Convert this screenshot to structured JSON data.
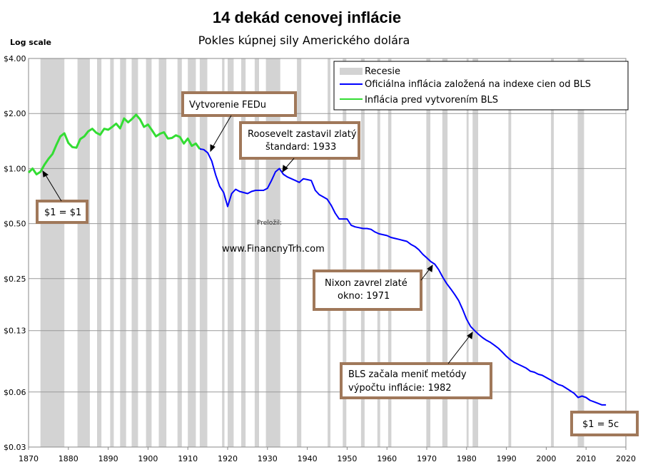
{
  "chart_data": {
    "type": "line",
    "title": "14 dekád cenovej inflácie",
    "subtitle": "Pokles kúpnej sily Amerického dolára",
    "y_scale_label": "Log scale",
    "log_scale": true,
    "grid": true,
    "xlim": [
      1870,
      2020
    ],
    "ylim": [
      0.03,
      4.0
    ],
    "x_ticks": [
      1870,
      1880,
      1890,
      1900,
      1910,
      1920,
      1930,
      1940,
      1950,
      1960,
      1970,
      1980,
      1990,
      2000,
      2010,
      2020
    ],
    "y_ticks": [
      {
        "value": 4.0,
        "label": "$4.00"
      },
      {
        "value": 2.0,
        "label": "$2.00"
      },
      {
        "value": 1.0,
        "label": "$1.00"
      },
      {
        "value": 0.5,
        "label": "$0.50"
      },
      {
        "value": 0.25,
        "label": "$0.25"
      },
      {
        "value": 0.13,
        "label": "$0.13"
      },
      {
        "value": 0.06,
        "label": "$0.06"
      },
      {
        "value": 0.03,
        "label": "$0.03"
      }
    ],
    "legend": {
      "position": "top-right",
      "entries": [
        {
          "label": "Recesie",
          "color": "#d3d3d3",
          "kind": "band"
        },
        {
          "label": "Oficiálna inflácia založená na indexe cien od BLS",
          "color": "#0000ff",
          "kind": "line"
        },
        {
          "label": "Inflácia pred vytvorením BLS",
          "color": "#33dd33",
          "kind": "line"
        }
      ]
    },
    "recessions": [
      [
        1873.0,
        1879.0
      ],
      [
        1882.3,
        1885.4
      ],
      [
        1887.2,
        1888.3
      ],
      [
        1890.5,
        1891.4
      ],
      [
        1893.0,
        1894.5
      ],
      [
        1895.9,
        1897.5
      ],
      [
        1899.5,
        1900.9
      ],
      [
        1902.7,
        1904.6
      ],
      [
        1907.4,
        1908.5
      ],
      [
        1910.0,
        1912.0
      ],
      [
        1913.0,
        1914.9
      ],
      [
        1918.6,
        1919.2
      ],
      [
        1920.0,
        1921.5
      ],
      [
        1923.4,
        1924.5
      ],
      [
        1926.8,
        1927.9
      ],
      [
        1929.6,
        1933.2
      ],
      [
        1937.4,
        1938.5
      ],
      [
        1945.1,
        1945.8
      ],
      [
        1948.9,
        1949.8
      ],
      [
        1953.5,
        1954.4
      ],
      [
        1957.6,
        1958.3
      ],
      [
        1960.3,
        1961.1
      ],
      [
        1969.9,
        1970.9
      ],
      [
        1973.9,
        1975.2
      ],
      [
        1980.0,
        1980.5
      ],
      [
        1981.5,
        1982.9
      ],
      [
        1990.5,
        1991.2
      ],
      [
        2001.2,
        2001.9
      ],
      [
        2007.9,
        2009.5
      ]
    ],
    "series": [
      {
        "name": "Inflácia pred vytvorením BLS",
        "color": "#33dd33",
        "x": [
          1870,
          1871,
          1872,
          1873,
          1874,
          1875,
          1876,
          1877,
          1878,
          1879,
          1880,
          1881,
          1882,
          1883,
          1884,
          1885,
          1886,
          1887,
          1888,
          1889,
          1890,
          1891,
          1892,
          1893,
          1894,
          1895,
          1896,
          1897,
          1898,
          1899,
          1900,
          1901,
          1902,
          1903,
          1904,
          1905,
          1906,
          1907,
          1908,
          1909,
          1910,
          1911,
          1912,
          1913
        ],
        "y": [
          0.95,
          1.0,
          0.93,
          0.96,
          1.05,
          1.13,
          1.2,
          1.35,
          1.5,
          1.56,
          1.38,
          1.31,
          1.3,
          1.45,
          1.5,
          1.6,
          1.65,
          1.57,
          1.53,
          1.65,
          1.63,
          1.69,
          1.76,
          1.66,
          1.88,
          1.79,
          1.87,
          1.97,
          1.86,
          1.69,
          1.74,
          1.62,
          1.5,
          1.55,
          1.58,
          1.46,
          1.47,
          1.52,
          1.49,
          1.37,
          1.46,
          1.33,
          1.37,
          1.28
        ]
      },
      {
        "name": "Oficiálna inflácia založená na indexe cien od BLS",
        "color": "#0000ff",
        "x": [
          1913,
          1914,
          1915,
          1916,
          1917,
          1918,
          1919,
          1920,
          1921,
          1922,
          1923,
          1924,
          1925,
          1926,
          1927,
          1928,
          1929,
          1930,
          1931,
          1932,
          1933,
          1934,
          1935,
          1936,
          1937,
          1938,
          1939,
          1940,
          1941,
          1942,
          1943,
          1944,
          1945,
          1946,
          1947,
          1948,
          1949,
          1950,
          1951,
          1952,
          1953,
          1954,
          1955,
          1956,
          1957,
          1958,
          1959,
          1960,
          1961,
          1962,
          1963,
          1964,
          1965,
          1966,
          1967,
          1968,
          1969,
          1970,
          1971,
          1972,
          1973,
          1974,
          1975,
          1976,
          1977,
          1978,
          1979,
          1980,
          1981,
          1982,
          1983,
          1984,
          1985,
          1986,
          1987,
          1988,
          1989,
          1990,
          1991,
          1992,
          1993,
          1994,
          1995,
          1996,
          1997,
          1998,
          1999,
          2000,
          2001,
          2002,
          2003,
          2004,
          2005,
          2006,
          2007,
          2008,
          2009,
          2010,
          2011,
          2012,
          2013,
          2014,
          2015
        ],
        "y": [
          1.28,
          1.27,
          1.22,
          1.1,
          0.92,
          0.8,
          0.74,
          0.62,
          0.73,
          0.77,
          0.75,
          0.74,
          0.73,
          0.75,
          0.76,
          0.76,
          0.76,
          0.78,
          0.86,
          0.96,
          1.0,
          0.93,
          0.9,
          0.88,
          0.86,
          0.84,
          0.88,
          0.87,
          0.86,
          0.76,
          0.72,
          0.7,
          0.68,
          0.63,
          0.57,
          0.53,
          0.53,
          0.53,
          0.49,
          0.48,
          0.475,
          0.47,
          0.47,
          0.465,
          0.45,
          0.44,
          0.435,
          0.43,
          0.42,
          0.415,
          0.41,
          0.405,
          0.4,
          0.385,
          0.375,
          0.36,
          0.34,
          0.325,
          0.31,
          0.3,
          0.28,
          0.255,
          0.235,
          0.22,
          0.205,
          0.19,
          0.17,
          0.15,
          0.137,
          0.13,
          0.124,
          0.119,
          0.115,
          0.112,
          0.108,
          0.104,
          0.099,
          0.094,
          0.09,
          0.087,
          0.085,
          0.083,
          0.081,
          0.078,
          0.077,
          0.075,
          0.074,
          0.072,
          0.07,
          0.068,
          0.066,
          0.065,
          0.063,
          0.061,
          0.059,
          0.056,
          0.057,
          0.056,
          0.054,
          0.053,
          0.052,
          0.051,
          0.051
        ]
      }
    ],
    "annotations": [
      {
        "lines": [
          "Vytvorenie FEDu"
        ],
        "target": {
          "x": 1914,
          "y": 1.27
        }
      },
      {
        "lines": [
          "Roosevelt zastavil zlatý",
          "štandard: 1933"
        ],
        "target": {
          "x": 1933,
          "y": 0.97
        }
      },
      {
        "lines": [
          "$1 = $1"
        ],
        "target": {
          "x": 1870.5,
          "y": 0.95
        }
      },
      {
        "lines": [
          "Nixon zavrel zlaté",
          "okno: 1971"
        ],
        "target": {
          "x": 1972,
          "y": 0.31
        }
      },
      {
        "lines": [
          "BLS začala meniť metódy",
          "výpočtu inflácie: 1982"
        ],
        "target": {
          "x": 1981,
          "y": 0.135
        }
      },
      {
        "lines": [
          "$1 = 5c"
        ],
        "target": null
      }
    ],
    "credit": {
      "label": "Preložil:",
      "url": "www.FinancnyTrh.com"
    }
  }
}
